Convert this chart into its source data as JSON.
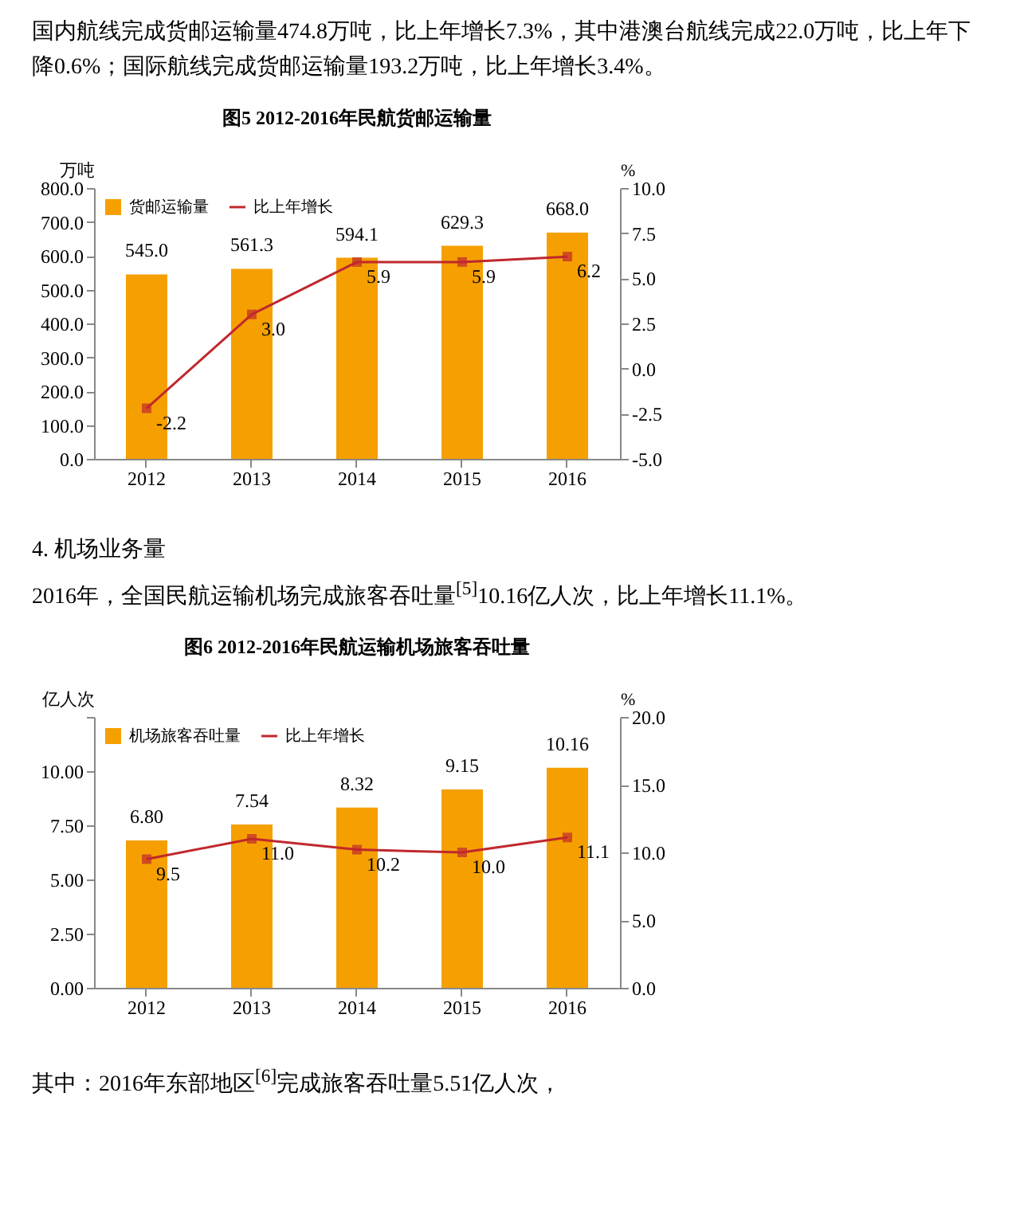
{
  "chart_data": [
    {
      "type": "bar",
      "title": "图5 2012-2016年民航货邮运输量",
      "ylabel": "万吨",
      "y2label": "%",
      "annotations": [
        "国内航线完成货邮运输量474.8万吨，比上年增长7.3%，其中港澳台航线完成22.0万吨，比上年下降0.6%；国际航线完成货邮运输量193.2万吨，比上年增长3.4%。"
      ],
      "categories": [
        "2012",
        "2013",
        "2014",
        "2015",
        "2016"
      ],
      "series": [
        {
          "name": "货邮运输量",
          "color": "#f5a000",
          "values": [
            545.0,
            561.3,
            594.1,
            629.3,
            668.0
          ],
          "value_labels": [
            "545.0",
            "561.3",
            "594.1",
            "629.3",
            "668.0"
          ]
        },
        {
          "name": "比上年增长",
          "type": "line",
          "axis": "y2",
          "color": "#c0282d",
          "marker": "square",
          "values": [
            -2.2,
            3.0,
            5.9,
            5.9,
            6.2
          ],
          "value_labels": [
            "-2.2",
            "3.0",
            "5.9",
            "5.9",
            "6.2"
          ]
        }
      ],
      "ylim": [
        0,
        800
      ],
      "yticks": [
        {
          "value": 0,
          "label": "0.0"
        },
        {
          "value": 100,
          "label": "100.0"
        },
        {
          "value": 200,
          "label": "200.0"
        },
        {
          "value": 300,
          "label": "300.0"
        },
        {
          "value": 400,
          "label": "400.0"
        },
        {
          "value": 500,
          "label": "500.0"
        },
        {
          "value": 600,
          "label": "600.0"
        },
        {
          "value": 700,
          "label": "700.0"
        },
        {
          "value": 800,
          "label": "800.0"
        }
      ],
      "y2lim": [
        -5,
        10
      ],
      "y2ticks": [
        {
          "value": -5,
          "label": "-5.0"
        },
        {
          "value": -2.5,
          "label": "-2.5"
        },
        {
          "value": 0,
          "label": "0.0"
        },
        {
          "value": 2.5,
          "label": "2.5"
        },
        {
          "value": 5,
          "label": "5.0"
        },
        {
          "value": 7.5,
          "label": "7.5"
        },
        {
          "value": 10,
          "label": "10.0"
        }
      ],
      "legend": "top left",
      "grid": false
    },
    {
      "type": "bar",
      "title": "图6 2012-2016年民航运输机场旅客吞吐量",
      "ylabel": "亿人次",
      "y2label": "%",
      "annotations": [
        "4. 机场业务量",
        "2016年，全国民航运输机场完成旅客吞吐量$^{[5]}$10.16亿人次，比上年增长11.1%。",
        "其中：2016年东部地区$^{[6]}$完成旅客吞吐量5.51亿人次，"
      ],
      "categories": [
        "2012",
        "2013",
        "2014",
        "2015",
        "2016"
      ],
      "series": [
        {
          "name": "机场旅客吞吐量",
          "color": "#f5a000",
          "values": [
            6.8,
            7.54,
            8.32,
            9.15,
            10.16
          ],
          "value_labels": [
            "6.80",
            "7.54",
            "8.32",
            "9.15",
            "10.16"
          ]
        },
        {
          "name": "比上年增长",
          "type": "line",
          "axis": "y2",
          "color": "#c0282d",
          "marker": "square",
          "values": [
            9.5,
            11.0,
            10.2,
            10.0,
            11.1
          ],
          "value_labels": [
            "9.5",
            "11.0",
            "10.2",
            "10.0",
            "11.1"
          ]
        }
      ],
      "ylim": [
        0,
        12.5
      ],
      "yticks": [
        {
          "value": 0,
          "label": "0.00"
        },
        {
          "value": 2.5,
          "label": "2.50"
        },
        {
          "value": 5,
          "label": "5.00"
        },
        {
          "value": 7.5,
          "label": "7.50"
        },
        {
          "value": 10,
          "label": "10.00"
        },
        {
          "value": 12.5,
          "label": null
        }
      ],
      "y2lim": [
        0,
        20
      ],
      "y2ticks": [
        {
          "value": 0,
          "label": "0.0"
        },
        {
          "value": 5,
          "label": "5.0"
        },
        {
          "value": 10,
          "label": "10.0"
        },
        {
          "value": 15,
          "label": "15.0"
        },
        {
          "value": 20,
          "label": "20.0"
        }
      ],
      "legend": "top left",
      "grid": false
    }
  ]
}
